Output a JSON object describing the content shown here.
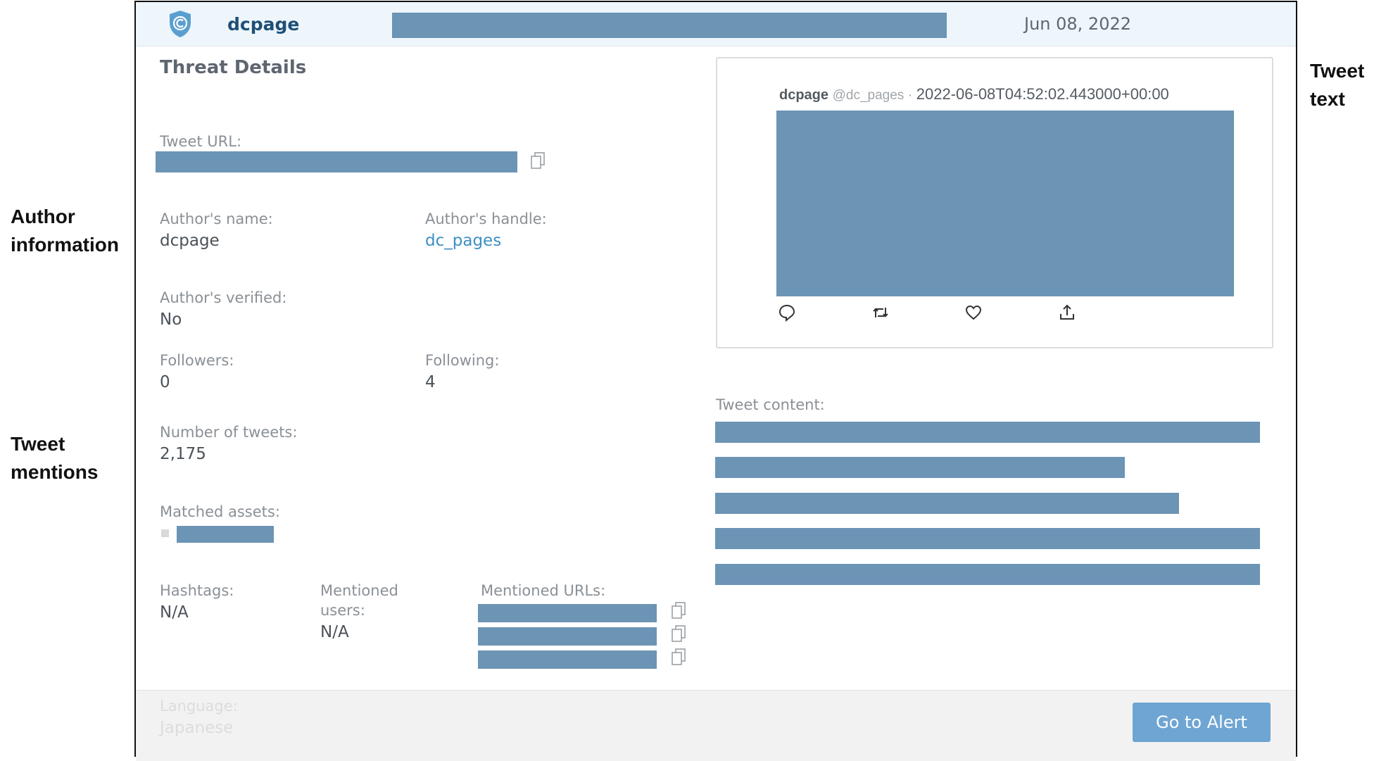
{
  "annotations": {
    "author": [
      "Author",
      "information"
    ],
    "mentions": [
      "Tweet",
      "mentions"
    ],
    "text": [
      "Tweet",
      "text"
    ]
  },
  "header": {
    "name": "dcpage",
    "date": "Jun 08, 2022"
  },
  "details": {
    "title": "Threat Details",
    "tweet_url_label": "Tweet URL:",
    "author_name_label": "Author's name:",
    "author_name": "dcpage",
    "author_handle_label": "Author's handle:",
    "author_handle": "dc_pages",
    "verified_label": "Author's verified:",
    "verified": "No",
    "followers_label": "Followers:",
    "followers": "0",
    "following_label": "Following:",
    "following": "4",
    "tweets_label": "Number of tweets:",
    "tweets": "2,175",
    "matched_assets_label": "Matched assets:",
    "hashtags_label": "Hashtags:",
    "hashtags": "N/A",
    "mentioned_users_label_1": "Mentioned",
    "mentioned_users_label_2": "users:",
    "mentioned_users": "N/A",
    "mentioned_urls_label": "Mentioned URLs:",
    "language_label": "Language:",
    "language": "Japanese"
  },
  "tweet": {
    "author": "dcpage",
    "handle": "@dc_pages",
    "separator": "·",
    "timestamp": "2022-06-08T04:52:02.443000+00:00",
    "content_label": "Tweet content:"
  },
  "footer": {
    "go_label": "Go to Alert"
  },
  "colors": {
    "redaction": "#6b94b5",
    "accent": "#3d8fc4",
    "button": "#6ea5d3"
  }
}
